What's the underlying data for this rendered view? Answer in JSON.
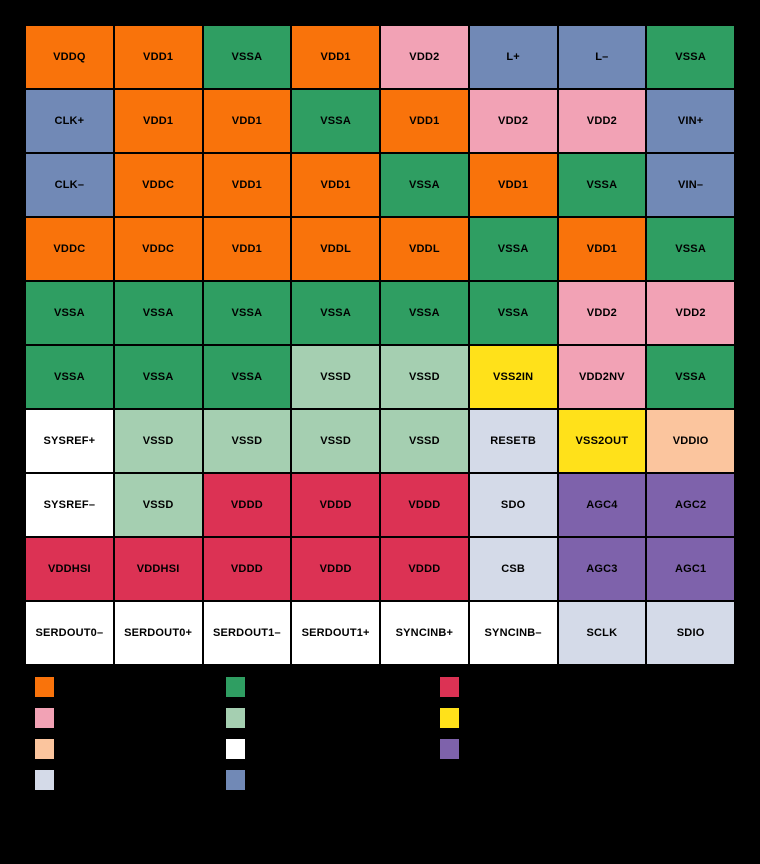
{
  "palette": {
    "orange": "#F9730B",
    "pink": "#F2A2B5",
    "peach": "#FBC59E",
    "lavender": "#D4DAE8",
    "green": "#2F9E62",
    "light_green": "#A5CFB1",
    "white": "#FFFFFF",
    "blue": "#7189B6",
    "crimson": "#DC3254",
    "yellow": "#FFE11A",
    "purple": "#7E62AB",
    "background": "#000000",
    "grid_line": "#000000",
    "cell_text": "#000000"
  },
  "pin_grid": {
    "rows": [
      [
        {
          "label": "VDDQ",
          "color": "orange"
        },
        {
          "label": "VDD1",
          "color": "orange"
        },
        {
          "label": "VSSA",
          "color": "green"
        },
        {
          "label": "VDD1",
          "color": "orange"
        },
        {
          "label": "VDD2",
          "color": "pink"
        },
        {
          "label": "L+",
          "color": "blue"
        },
        {
          "label": "L–",
          "color": "blue"
        },
        {
          "label": "VSSA",
          "color": "green"
        }
      ],
      [
        {
          "label": "CLK+",
          "color": "blue"
        },
        {
          "label": "VDD1",
          "color": "orange"
        },
        {
          "label": "VDD1",
          "color": "orange"
        },
        {
          "label": "VSSA",
          "color": "green"
        },
        {
          "label": "VDD1",
          "color": "orange"
        },
        {
          "label": "VDD2",
          "color": "pink"
        },
        {
          "label": "VDD2",
          "color": "pink"
        },
        {
          "label": "VIN+",
          "color": "blue"
        }
      ],
      [
        {
          "label": "CLK–",
          "color": "blue"
        },
        {
          "label": "VDDC",
          "color": "orange"
        },
        {
          "label": "VDD1",
          "color": "orange"
        },
        {
          "label": "VDD1",
          "color": "orange"
        },
        {
          "label": "VSSA",
          "color": "green"
        },
        {
          "label": "VDD1",
          "color": "orange"
        },
        {
          "label": "VSSA",
          "color": "green"
        },
        {
          "label": "VIN–",
          "color": "blue"
        }
      ],
      [
        {
          "label": "VDDC",
          "color": "orange"
        },
        {
          "label": "VDDC",
          "color": "orange"
        },
        {
          "label": "VDD1",
          "color": "orange"
        },
        {
          "label": "VDDL",
          "color": "orange"
        },
        {
          "label": "VDDL",
          "color": "orange"
        },
        {
          "label": "VSSA",
          "color": "green"
        },
        {
          "label": "VDD1",
          "color": "orange"
        },
        {
          "label": "VSSA",
          "color": "green"
        }
      ],
      [
        {
          "label": "VSSA",
          "color": "green"
        },
        {
          "label": "VSSA",
          "color": "green"
        },
        {
          "label": "VSSA",
          "color": "green"
        },
        {
          "label": "VSSA",
          "color": "green"
        },
        {
          "label": "VSSA",
          "color": "green"
        },
        {
          "label": "VSSA",
          "color": "green"
        },
        {
          "label": "VDD2",
          "color": "pink"
        },
        {
          "label": "VDD2",
          "color": "pink"
        }
      ],
      [
        {
          "label": "VSSA",
          "color": "green"
        },
        {
          "label": "VSSA",
          "color": "green"
        },
        {
          "label": "VSSA",
          "color": "green"
        },
        {
          "label": "VSSD",
          "color": "light_green"
        },
        {
          "label": "VSSD",
          "color": "light_green"
        },
        {
          "label": "VSS2IN",
          "color": "yellow"
        },
        {
          "label": "VDD2NV",
          "color": "pink"
        },
        {
          "label": "VSSA",
          "color": "green"
        }
      ],
      [
        {
          "label": "SYSREF+",
          "color": "white"
        },
        {
          "label": "VSSD",
          "color": "light_green"
        },
        {
          "label": "VSSD",
          "color": "light_green"
        },
        {
          "label": "VSSD",
          "color": "light_green"
        },
        {
          "label": "VSSD",
          "color": "light_green"
        },
        {
          "label": "RESETB",
          "color": "lavender"
        },
        {
          "label": "VSS2OUT",
          "color": "yellow"
        },
        {
          "label": "VDDIO",
          "color": "peach"
        }
      ],
      [
        {
          "label": "SYSREF–",
          "color": "white"
        },
        {
          "label": "VSSD",
          "color": "light_green"
        },
        {
          "label": "VDDD",
          "color": "crimson"
        },
        {
          "label": "VDDD",
          "color": "crimson"
        },
        {
          "label": "VDDD",
          "color": "crimson"
        },
        {
          "label": "SDO",
          "color": "lavender"
        },
        {
          "label": "AGC4",
          "color": "purple"
        },
        {
          "label": "AGC2",
          "color": "purple"
        }
      ],
      [
        {
          "label": "VDDHSI",
          "color": "crimson"
        },
        {
          "label": "VDDHSI",
          "color": "crimson"
        },
        {
          "label": "VDDD",
          "color": "crimson"
        },
        {
          "label": "VDDD",
          "color": "crimson"
        },
        {
          "label": "VDDD",
          "color": "crimson"
        },
        {
          "label": "CSB",
          "color": "lavender"
        },
        {
          "label": "AGC3",
          "color": "purple"
        },
        {
          "label": "AGC1",
          "color": "purple"
        }
      ],
      [
        {
          "label": "SERDOUT0–",
          "color": "white"
        },
        {
          "label": "SERDOUT0+",
          "color": "white"
        },
        {
          "label": "SERDOUT1–",
          "color": "white"
        },
        {
          "label": "SERDOUT1+",
          "color": "white"
        },
        {
          "label": "SYNCINB+",
          "color": "white"
        },
        {
          "label": "SYNCINB–",
          "color": "white"
        },
        {
          "label": "SCLK",
          "color": "lavender"
        },
        {
          "label": "SDIO",
          "color": "lavender"
        }
      ]
    ]
  },
  "legend": {
    "columns": [
      {
        "swatches": [
          "orange",
          "pink",
          "peach",
          "lavender"
        ]
      },
      {
        "swatches": [
          "green",
          "light_green",
          "white",
          "blue"
        ]
      },
      {
        "swatches": [
          "crimson",
          "yellow",
          "purple"
        ]
      }
    ]
  }
}
